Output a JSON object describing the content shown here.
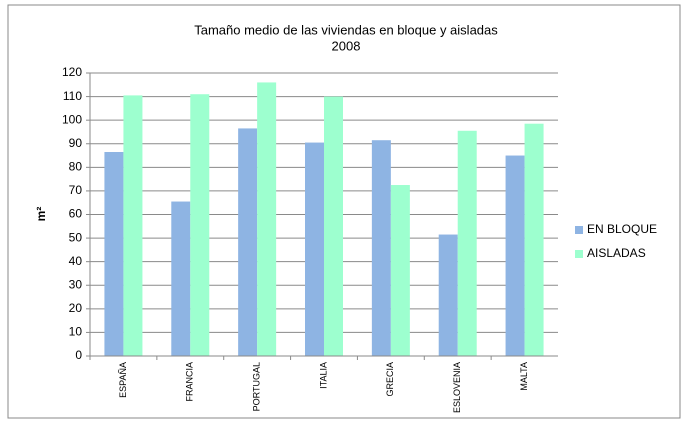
{
  "chart_data": {
    "type": "bar",
    "title": "Tamaño medio de las viviendas en bloque y aisladas",
    "subtitle": "2008",
    "y_label": "m²",
    "categories": [
      "ESPAÑA",
      "FRANCIA",
      "PORTUGAL",
      "ITALIA",
      "GRECIA",
      "ESLOVENIA",
      "MALTA"
    ],
    "series": [
      {
        "name": "EN BLOQUE",
        "color": "#8eb4e3",
        "values": [
          86.5,
          65.5,
          96.5,
          90.5,
          91.5,
          51.5,
          85
        ]
      },
      {
        "name": "AISLADAS",
        "color": "#9dffcf",
        "values": [
          110.5,
          111,
          116,
          110,
          72.5,
          95.5,
          98.5
        ]
      }
    ],
    "ylim": [
      0,
      120
    ],
    "yticks": [
      0,
      10,
      20,
      30,
      40,
      50,
      60,
      70,
      80,
      90,
      100,
      110,
      120
    ],
    "grid": true,
    "legend": "right"
  }
}
